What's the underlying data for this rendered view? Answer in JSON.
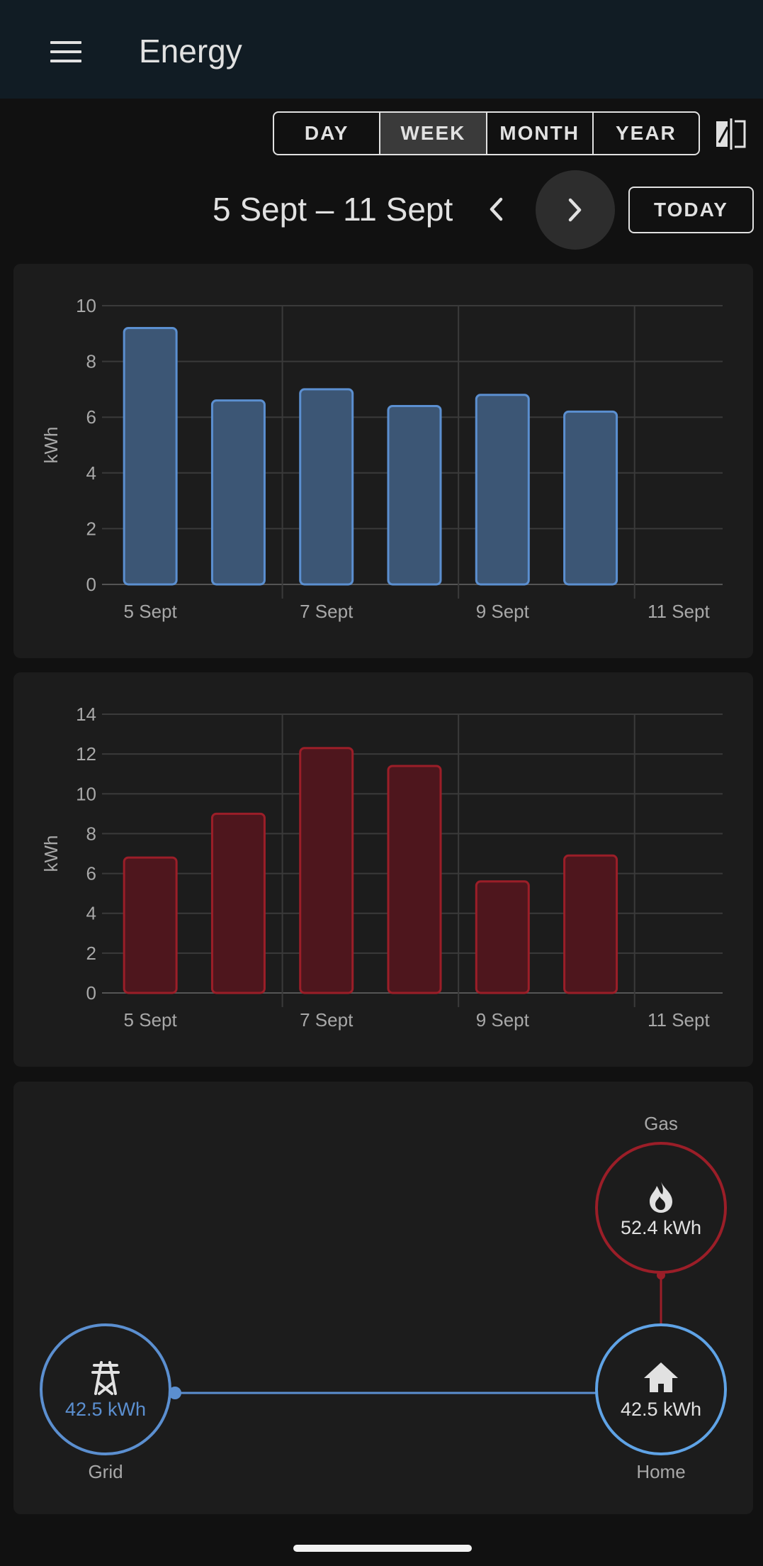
{
  "header": {
    "title": "Energy",
    "menu_icon": "menu-icon"
  },
  "period": {
    "buttons": [
      {
        "label": "DAY",
        "active": false
      },
      {
        "label": "WEEK",
        "active": true
      },
      {
        "label": "MONTH",
        "active": false
      },
      {
        "label": "YEAR",
        "active": false
      }
    ],
    "compare_icon": "compare-icon"
  },
  "date_nav": {
    "range": "5 Sept – 11 Sept",
    "prev_icon": "chevron-left-icon",
    "next_icon": "chevron-right-icon",
    "today_label": "TODAY"
  },
  "colors": {
    "electricity": "#5b8fd0",
    "electricity_fill": "#3c5675",
    "gas": "#9b1e28",
    "gas_fill": "#4e161d",
    "grid_line": "#3a3a3a",
    "axis_text": "#a8a8a8"
  },
  "chart_data": [
    {
      "type": "bar",
      "categories": [
        "5 Sept",
        "6 Sept",
        "7 Sept",
        "8 Sept",
        "9 Sept",
        "10 Sept",
        "11 Sept"
      ],
      "tick_labels": [
        "5 Sept",
        "7 Sept",
        "9 Sept",
        "11 Sept"
      ],
      "values": [
        9.2,
        6.6,
        7.0,
        6.4,
        6.8,
        6.2,
        null
      ],
      "ylabel": "kWh",
      "yticks": [
        0,
        2,
        4,
        6,
        8,
        10
      ],
      "ylim": [
        0,
        10
      ],
      "grid": true
    },
    {
      "type": "bar",
      "categories": [
        "5 Sept",
        "6 Sept",
        "7 Sept",
        "8 Sept",
        "9 Sept",
        "10 Sept",
        "11 Sept"
      ],
      "tick_labels": [
        "5 Sept",
        "7 Sept",
        "9 Sept",
        "11 Sept"
      ],
      "values": [
        6.8,
        9.0,
        12.3,
        11.4,
        5.6,
        6.9,
        null
      ],
      "ylabel": "kWh",
      "yticks": [
        0,
        2,
        4,
        6,
        8,
        10,
        12,
        14
      ],
      "ylim": [
        0,
        14
      ],
      "grid": true
    }
  ],
  "flow": {
    "gas": {
      "label": "Gas",
      "value": "52.4 kWh",
      "icon": "flame-icon"
    },
    "grid": {
      "label": "Grid",
      "value": "42.5 kWh",
      "icon": "transmission-tower-icon"
    },
    "home": {
      "label": "Home",
      "value": "42.5 kWh",
      "icon": "home-icon"
    }
  }
}
